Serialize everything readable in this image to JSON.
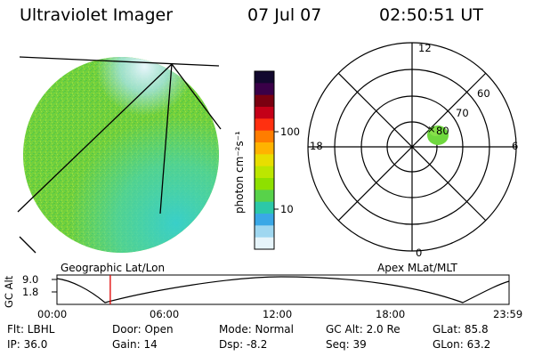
{
  "header": {
    "title": "Ultraviolet Imager",
    "date": "07 Jul 07",
    "time": "02:50:51 UT"
  },
  "colorbar": {
    "unit_label": "photon cm⁻²s⁻¹",
    "tick_100": "100",
    "tick_10": "10",
    "colors": [
      "#12082e",
      "#3a0048",
      "#7a0010",
      "#c40018",
      "#ff3010",
      "#ff7d00",
      "#ffb300",
      "#e8de00",
      "#bce600",
      "#8ee000",
      "#58d24a",
      "#2cc8a8",
      "#3aa8e6",
      "#9fd7f0",
      "#e6f4fa"
    ]
  },
  "polar": {
    "mlt_top": "12",
    "mlt_left": "18",
    "mlt_right": "6",
    "mlt_bottom": "0",
    "lat_60": "60",
    "lat_70": "70",
    "lat_80": "80"
  },
  "timeline": {
    "left_title": "Geographic Lat/Lon",
    "right_title": "Apex MLat/MLT",
    "y_axis_label": "GC Alt",
    "y_top": "9.0",
    "y_bottom": "1.8",
    "times": [
      "00:00",
      "06:00",
      "12:00",
      "18:00",
      "23:59"
    ],
    "marker_fraction": 0.118,
    "marker_color": "#e00000"
  },
  "info": {
    "flt": "Flt: LBHL",
    "door": "Door: Open",
    "mode": "Mode: Normal",
    "gcalt": "GC Alt: 2.0 Re",
    "glat": "GLat:  85.8",
    "ip": "IP: 36.0",
    "gain": "Gain: 14",
    "dsp": "Dsp:   -8.2",
    "seq": "Seq: 39",
    "glon": "GLon:  63.2"
  },
  "disk_colors": {
    "main": "#7ad43a",
    "cyan": "#40d4c8",
    "edge": "#b8e8f0"
  }
}
